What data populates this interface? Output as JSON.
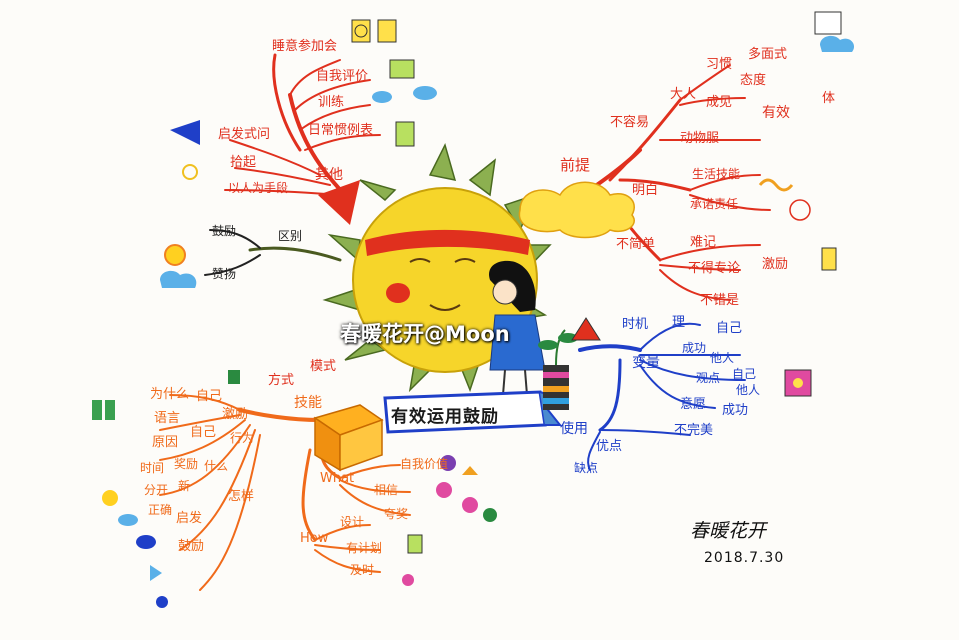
{
  "watermark": "春暖花开@Moon",
  "center_title": "有效运用鼓励",
  "signature": {
    "name": "春暖花开",
    "date": "2018.7.30"
  },
  "branches": {
    "qita": {
      "label": "其他",
      "items": [
        "睡意参加会",
        "自我评价",
        "训练",
        "日常惯例表",
        "启发式问",
        "拾起",
        "以人为手段"
      ]
    },
    "qubie": {
      "label": "区别",
      "items": [
        "鼓励",
        "赞扬"
      ]
    },
    "qianti": {
      "label": "前提",
      "items": [
        "不容易",
        "大人",
        "习惯",
        "多面式",
        "态度",
        "成见",
        "有效",
        "体",
        "动物服",
        "明白",
        "生活技能",
        "承诺责任",
        "不简单",
        "难记",
        "不得专论",
        "激励",
        "不错是"
      ]
    },
    "shiyong": {
      "label": "使用",
      "items": [
        "时机",
        "理",
        "自己",
        "变量",
        "成功",
        "他人",
        "观点",
        "自己",
        "他人",
        "意愿",
        "成功",
        "不完美",
        "优点",
        "缺点"
      ]
    },
    "shijian": {
      "label": "技能",
      "items": [
        "方式",
        "模式",
        "为什么",
        "自己",
        "语言",
        "激励",
        "原因",
        "自己",
        "行为",
        "时间",
        "奖励",
        "什么",
        "分开",
        "新",
        "正确",
        "怎样",
        "启发",
        "鼓励",
        "What",
        "自我价值",
        "相信",
        "夸奖",
        "How",
        "设计",
        "有计划",
        "及时"
      ]
    }
  }
}
